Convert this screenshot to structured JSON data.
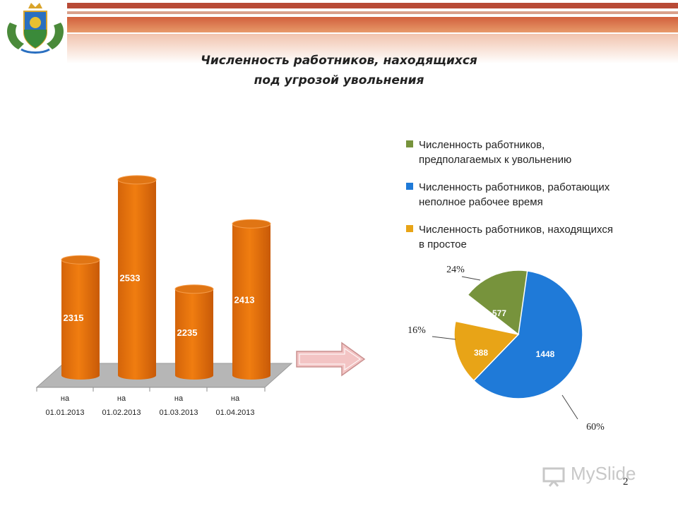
{
  "slide": {
    "title_line1": "Численность работников, находящихся",
    "title_line2": "под угрозой увольнения",
    "page_number": "2",
    "watermark": "MySlide"
  },
  "colors": {
    "bar": "#f07d10",
    "green": "#77933c",
    "blue": "#1f7ad8",
    "orange": "#e8a417",
    "arrow": "#f3b8b8"
  },
  "chart_data": [
    {
      "type": "bar",
      "categories": [
        [
          "на",
          "01.01.2013"
        ],
        [
          "на",
          "01.02.2013"
        ],
        [
          "на",
          "01.03.2013"
        ],
        [
          "на",
          "01.04.2013"
        ]
      ],
      "values": [
        2315,
        2533,
        2235,
        2413
      ],
      "data_labels": [
        "2315",
        "2533",
        "2235",
        "2413"
      ],
      "ylim": [
        2000,
        2600
      ],
      "grid": false
    },
    {
      "type": "pie",
      "labels": [
        "Численность работников, предполагаемых к увольнению",
        "Численность работников, работающих неполное рабочее время",
        "Численность работников, находящихся в простое"
      ],
      "values": [
        577,
        1448,
        388
      ],
      "value_labels": [
        "577",
        "1448",
        "388"
      ],
      "percent_labels": [
        "24%",
        "60%",
        "16%"
      ],
      "colors": [
        "#77933c",
        "#1f7ad8",
        "#e8a417"
      ],
      "legend": "top-right"
    }
  ]
}
